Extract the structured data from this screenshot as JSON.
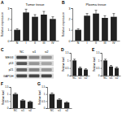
{
  "chart_data": [
    {
      "type": "bar",
      "title": "Tumor tissue",
      "annotations": [
        "A"
      ],
      "y_label": "Relative expression",
      "categories": [
        "N",
        "I",
        "II",
        "III",
        "IV"
      ],
      "values": [
        1.0,
        2.6,
        2.2,
        2.4,
        2.0
      ],
      "errors": [
        0.1,
        0.3,
        0.2,
        0.3,
        0.2
      ],
      "ylim": [
        0,
        3
      ],
      "yticks": [
        0,
        1,
        2,
        3
      ],
      "color": "#222222"
    },
    {
      "type": "bar",
      "title": "Plasma tissue",
      "annotations": [
        "B"
      ],
      "y_label": "Relative expression",
      "categories": [
        "N",
        "I",
        "II",
        "III",
        "IV"
      ],
      "values": [
        1.0,
        2.3,
        2.5,
        2.1,
        2.2
      ],
      "errors": [
        0.1,
        0.2,
        0.3,
        0.2,
        0.3
      ],
      "ylim": [
        0,
        3
      ],
      "yticks": [
        0,
        1,
        2,
        3
      ],
      "color": "#222222"
    },
    {
      "type": "blot",
      "annotations": [
        "C"
      ],
      "categories": [
        "NC",
        "si1",
        "si2"
      ],
      "color": "#333333",
      "series": [
        {
          "name": "MEG3",
          "values": [
            0.9,
            0.5,
            0.4
          ]
        },
        {
          "name": "p53",
          "values": [
            0.8,
            0.4,
            0.3
          ]
        },
        {
          "name": "p21",
          "values": [
            0.7,
            0.5,
            0.4
          ]
        },
        {
          "name": "GAPDH",
          "values": [
            0.9,
            0.9,
            0.9
          ]
        }
      ]
    },
    {
      "type": "bar",
      "annotations": [
        "D"
      ],
      "y_label": "Relative level",
      "categories": [
        "NC",
        "si1",
        "si2"
      ],
      "values": [
        1.0,
        0.5,
        0.4
      ],
      "errors": [
        0.08,
        0.06,
        0.05
      ],
      "ylim": [
        0,
        1.5
      ],
      "yticks": [
        0,
        0.5,
        1,
        1.5
      ],
      "color": "#222222"
    },
    {
      "type": "bar",
      "annotations": [
        "E"
      ],
      "y_label": "Relative level",
      "categories": [
        "NC",
        "si1",
        "si2"
      ],
      "values": [
        1.0,
        0.6,
        0.5
      ],
      "errors": [
        0.08,
        0.07,
        0.06
      ],
      "ylim": [
        0,
        1.5
      ],
      "yticks": [
        0,
        0.5,
        1,
        1.5
      ],
      "color": "#222222"
    },
    {
      "type": "bar",
      "annotations": [
        "F"
      ],
      "y_label": "Relative level",
      "categories": [
        "NC",
        "si1",
        "si2"
      ],
      "values": [
        1.0,
        0.55,
        0.45
      ],
      "errors": [
        0.07,
        0.06,
        0.05
      ],
      "ylim": [
        0,
        1.5
      ],
      "yticks": [
        0,
        0.5,
        1,
        1.5
      ],
      "color": "#222222"
    },
    {
      "type": "bar",
      "annotations": [
        "G"
      ],
      "y_label": "Relative level",
      "categories": [
        "NC",
        "si1",
        "si2"
      ],
      "values": [
        1.0,
        0.6,
        0.4
      ],
      "errors": [
        0.08,
        0.07,
        0.05
      ],
      "ylim": [
        0,
        1.5
      ],
      "yticks": [
        0,
        0.5,
        1,
        1.5
      ],
      "color": "#222222"
    }
  ]
}
